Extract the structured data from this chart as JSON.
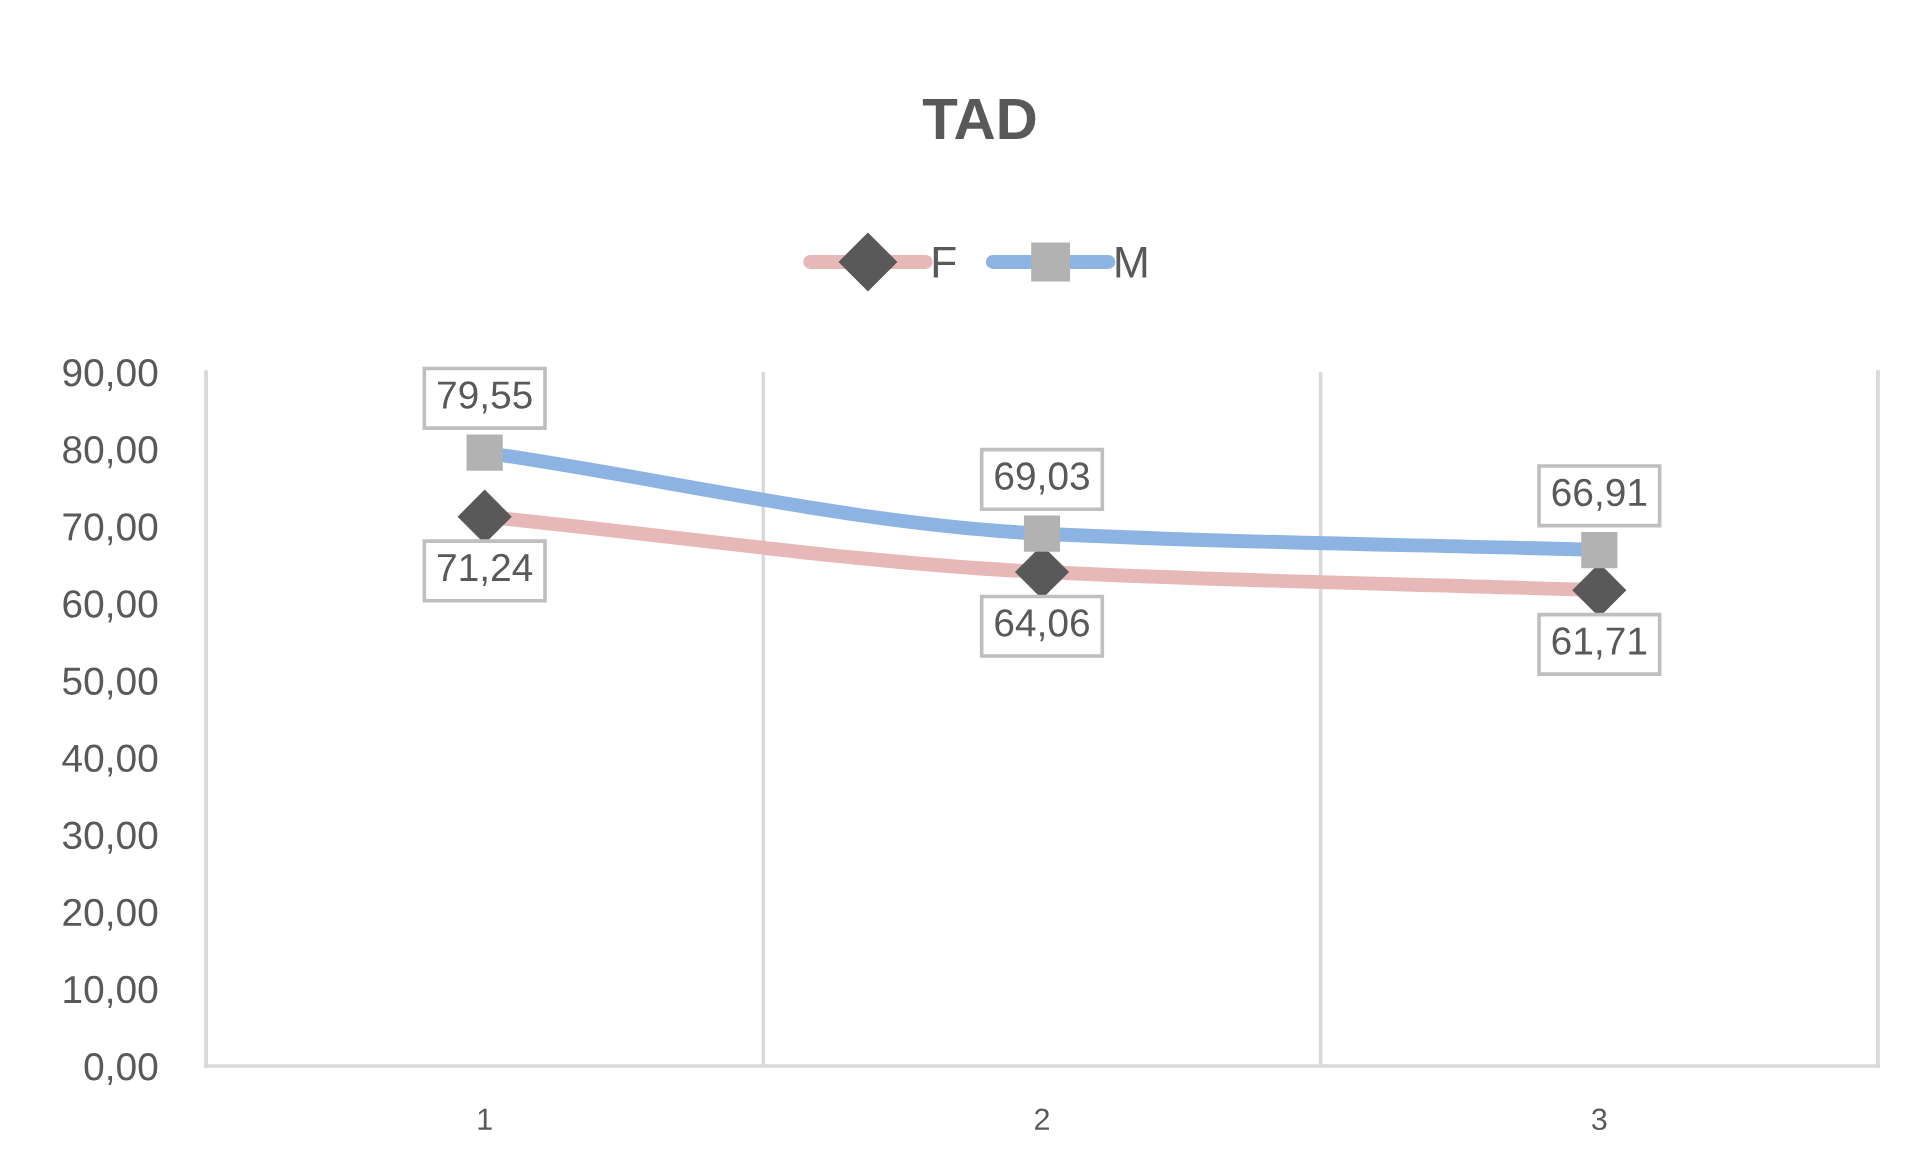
{
  "chart_data": {
    "type": "line",
    "title": "TAD",
    "categories": [
      "1",
      "2",
      "3"
    ],
    "series": [
      {
        "name": "F",
        "color": "#e6b9b8",
        "colors": [
          "#595959",
          "#595959",
          "#595959"
        ],
        "marker": "diamond",
        "values": [
          71.24,
          64.06,
          61.71
        ],
        "value_labels": [
          "71,24",
          "64,06",
          "61,71"
        ]
      },
      {
        "name": "M",
        "color": "#8db3e2",
        "colors": [
          "#b2b2b2",
          "#b2b2b2",
          "#b2b2b2"
        ],
        "marker": "square",
        "values": [
          79.55,
          69.03,
          66.91
        ],
        "value_labels": [
          "79,55",
          "69,03",
          "66,91"
        ]
      }
    ],
    "ylim": [
      0,
      90
    ],
    "yticks": [
      {
        "value": 0,
        "label": "0,00"
      },
      {
        "value": 10,
        "label": "10,00"
      },
      {
        "value": 20,
        "label": "20,00"
      },
      {
        "value": 30,
        "label": "30,00"
      },
      {
        "value": 40,
        "label": "40,00"
      },
      {
        "value": 50,
        "label": "50,00"
      },
      {
        "value": 60,
        "label": "60,00"
      },
      {
        "value": 70,
        "label": "70,00"
      },
      {
        "value": 80,
        "label": "80,00"
      },
      {
        "value": 90,
        "label": "90,00"
      }
    ],
    "grid": "x",
    "legend": "top",
    "line_style": "solid"
  }
}
